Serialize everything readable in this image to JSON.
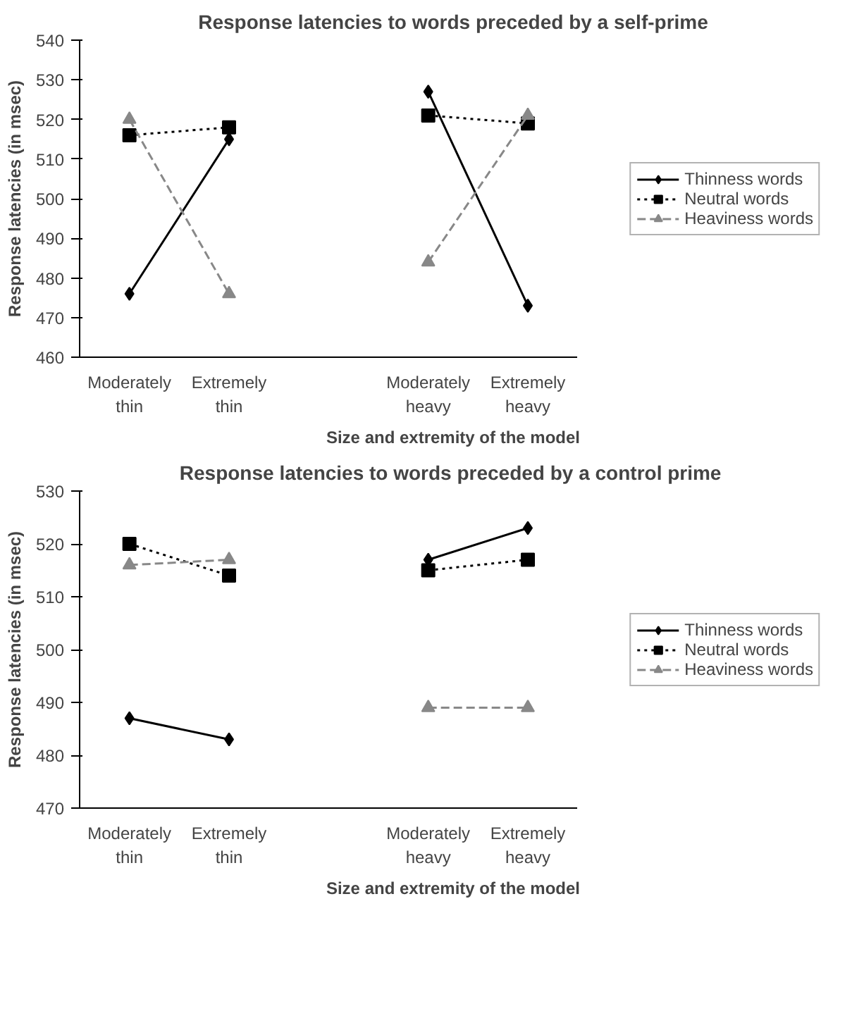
{
  "chart_data": [
    {
      "type": "line",
      "title": "Response latencies to words preceded by a self-prime",
      "ylabel": "Response latencies (in msec)",
      "xlabel": "Size and extremity of the model",
      "categories": [
        "Moderately thin",
        "Extremely thin",
        null,
        "Moderately heavy",
        "Extremely heavy"
      ],
      "series": [
        {
          "name": "Thinness words",
          "color": "#000000",
          "marker": "diamond",
          "line_style": "solid",
          "values": [
            476,
            515,
            null,
            527,
            473
          ]
        },
        {
          "name": "Neutral words",
          "color": "#000000",
          "marker": "square",
          "line_style": "dotted",
          "values": [
            516,
            518,
            null,
            521,
            519
          ]
        },
        {
          "name": "Heaviness words",
          "color": "#888888",
          "marker": "triangle",
          "line_style": "dashed",
          "values": [
            520,
            476,
            null,
            484,
            521
          ]
        }
      ],
      "ylim": [
        460,
        540
      ],
      "yticks": [
        460,
        470,
        480,
        490,
        500,
        510,
        520,
        530,
        540
      ],
      "grid": false,
      "legend": "right"
    },
    {
      "type": "line",
      "title": "Response latencies to words preceded by a  control prime",
      "ylabel": "Response latencies (in msec)",
      "xlabel": "Size and extremity of the model",
      "categories": [
        "Moderately thin",
        "Extremely thin",
        null,
        "Moderately heavy",
        "Extremely heavy"
      ],
      "series": [
        {
          "name": "Thinness words",
          "color": "#000000",
          "marker": "diamond",
          "line_style": "solid",
          "values": [
            487,
            483,
            null,
            517,
            523
          ]
        },
        {
          "name": "Neutral words",
          "color": "#000000",
          "marker": "square",
          "line_style": "dotted",
          "values": [
            520,
            514,
            null,
            515,
            517
          ]
        },
        {
          "name": "Heaviness words",
          "color": "#888888",
          "marker": "triangle",
          "line_style": "dashed",
          "values": [
            516,
            517,
            null,
            489,
            489
          ]
        }
      ],
      "ylim": [
        470,
        530
      ],
      "yticks": [
        470,
        480,
        490,
        500,
        510,
        520,
        530
      ],
      "grid": false,
      "legend": "right"
    }
  ]
}
